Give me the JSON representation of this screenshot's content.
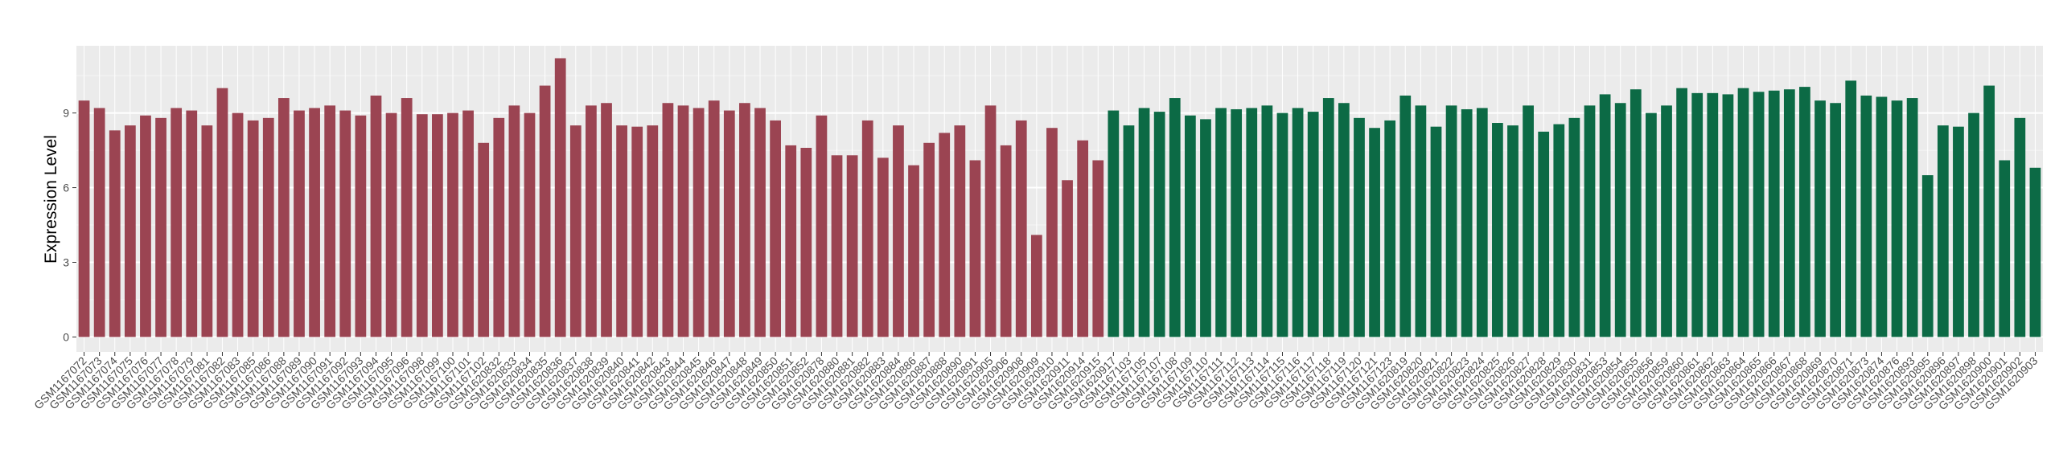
{
  "chart_data": {
    "type": "bar",
    "title": "",
    "xlabel": "",
    "ylabel": "Expression Level",
    "ylim": [
      -0.6,
      11.7
    ],
    "yticks": [
      0,
      3,
      6,
      9
    ],
    "grid": true,
    "legend": "none",
    "colors": {
      "group_1": "#9B4452",
      "group_2": "#0C6A45",
      "panel": "#EBEBEB",
      "gridline": "#FFFFFF"
    },
    "categories": [
      "GSM1167072",
      "GSM1167073",
      "GSM1167074",
      "GSM1167075",
      "GSM1167076",
      "GSM1167077",
      "GSM1167078",
      "GSM1167079",
      "GSM1167081",
      "GSM1167082",
      "GSM1167083",
      "GSM1167085",
      "GSM1167086",
      "GSM1167088",
      "GSM1167089",
      "GSM1167090",
      "GSM1167091",
      "GSM1167092",
      "GSM1167093",
      "GSM1167094",
      "GSM1167095",
      "GSM1167096",
      "GSM1167098",
      "GSM1167099",
      "GSM1167100",
      "GSM1167101",
      "GSM1167102",
      "GSM1620832",
      "GSM1620833",
      "GSM1620834",
      "GSM1620835",
      "GSM1620836",
      "GSM1620837",
      "GSM1620838",
      "GSM1620839",
      "GSM1620840",
      "GSM1620841",
      "GSM1620842",
      "GSM1620843",
      "GSM1620844",
      "GSM1620845",
      "GSM1620846",
      "GSM1620847",
      "GSM1620848",
      "GSM1620849",
      "GSM1620850",
      "GSM1620851",
      "GSM1620852",
      "GSM1620878",
      "GSM1620880",
      "GSM1620881",
      "GSM1620882",
      "GSM1620883",
      "GSM1620884",
      "GSM1620886",
      "GSM1620887",
      "GSM1620888",
      "GSM1620890",
      "GSM1620891",
      "GSM1620905",
      "GSM1620906",
      "GSM1620908",
      "GSM1620909",
      "GSM1620910",
      "GSM1620911",
      "GSM1620914",
      "GSM1620915",
      "GSM1620917",
      "GSM1167103",
      "GSM1167105",
      "GSM1167107",
      "GSM1167108",
      "GSM1167109",
      "GSM1167110",
      "GSM1167111",
      "GSM1167112",
      "GSM1167113",
      "GSM1167114",
      "GSM1167115",
      "GSM1167116",
      "GSM1167117",
      "GSM1167118",
      "GSM1167119",
      "GSM1167120",
      "GSM1167121",
      "GSM1167123",
      "GSM1620819",
      "GSM1620820",
      "GSM1620821",
      "GSM1620822",
      "GSM1620823",
      "GSM1620824",
      "GSM1620825",
      "GSM1620826",
      "GSM1620827",
      "GSM1620828",
      "GSM1620829",
      "GSM1620830",
      "GSM1620831",
      "GSM1620853",
      "GSM1620854",
      "GSM1620855",
      "GSM1620856",
      "GSM1620859",
      "GSM1620860",
      "GSM1620861",
      "GSM1620862",
      "GSM1620863",
      "GSM1620864",
      "GSM1620865",
      "GSM1620866",
      "GSM1620867",
      "GSM1620868",
      "GSM1620869",
      "GSM1620870",
      "GSM1620871",
      "GSM1620873",
      "GSM1620874",
      "GSM1620876",
      "GSM1620893",
      "GSM1620895",
      "GSM1620896",
      "GSM1620897",
      "GSM1620898",
      "GSM1620900",
      "GSM1620901",
      "GSM1620902",
      "GSM1620903"
    ],
    "values": [
      9.5,
      9.2,
      8.3,
      8.5,
      8.9,
      8.8,
      9.2,
      9.1,
      8.5,
      10.0,
      9.0,
      8.7,
      8.8,
      9.6,
      9.1,
      9.2,
      9.3,
      9.1,
      8.9,
      9.7,
      9.0,
      9.6,
      8.95,
      8.95,
      9.0,
      9.1,
      7.8,
      8.8,
      9.3,
      9.0,
      10.1,
      11.2,
      8.5,
      9.3,
      9.4,
      8.5,
      8.45,
      8.5,
      9.4,
      9.3,
      9.2,
      9.5,
      9.1,
      9.4,
      9.2,
      8.7,
      7.7,
      7.6,
      8.9,
      7.3,
      7.3,
      8.7,
      7.2,
      8.5,
      6.9,
      7.8,
      8.2,
      8.5,
      7.1,
      9.3,
      7.7,
      8.7,
      4.1,
      8.4,
      6.3,
      7.9,
      7.1,
      9.1,
      8.5,
      9.2,
      9.05,
      9.6,
      8.9,
      8.75,
      9.2,
      9.15,
      9.2,
      9.3,
      9.0,
      9.2,
      9.05,
      9.6,
      9.4,
      8.8,
      8.4,
      8.7,
      9.7,
      9.3,
      8.45,
      9.3,
      9.15,
      9.2,
      8.6,
      8.5,
      9.3,
      8.25,
      8.55,
      8.8,
      9.3,
      9.75,
      9.4,
      9.95,
      9.0,
      9.3,
      10.0,
      9.8,
      9.8,
      9.75,
      10.0,
      9.85,
      9.9,
      9.95,
      10.05,
      9.5,
      9.4,
      10.3,
      9.7,
      9.65,
      9.5,
      9.6,
      6.5,
      8.5,
      8.45,
      9.0,
      10.1,
      7.1,
      8.8,
      6.8
    ],
    "groups": [
      1,
      1,
      1,
      1,
      1,
      1,
      1,
      1,
      1,
      1,
      1,
      1,
      1,
      1,
      1,
      1,
      1,
      1,
      1,
      1,
      1,
      1,
      1,
      1,
      1,
      1,
      1,
      1,
      1,
      1,
      1,
      1,
      1,
      1,
      1,
      1,
      1,
      1,
      1,
      1,
      1,
      1,
      1,
      1,
      1,
      1,
      1,
      1,
      1,
      1,
      1,
      1,
      1,
      1,
      1,
      1,
      1,
      1,
      1,
      1,
      1,
      1,
      1,
      1,
      1,
      1,
      1,
      2,
      2,
      2,
      2,
      2,
      2,
      2,
      2,
      2,
      2,
      2,
      2,
      2,
      2,
      2,
      2,
      2,
      2,
      2,
      2,
      2,
      2,
      2,
      2,
      2,
      2,
      2,
      2,
      2,
      2,
      2,
      2,
      2,
      2,
      2,
      2,
      2,
      2,
      2,
      2,
      2,
      2,
      2,
      2,
      2,
      2,
      2,
      2,
      2,
      2,
      2,
      2,
      2,
      2,
      2,
      2,
      2,
      2,
      2,
      2,
      2,
      2,
      2
    ]
  }
}
